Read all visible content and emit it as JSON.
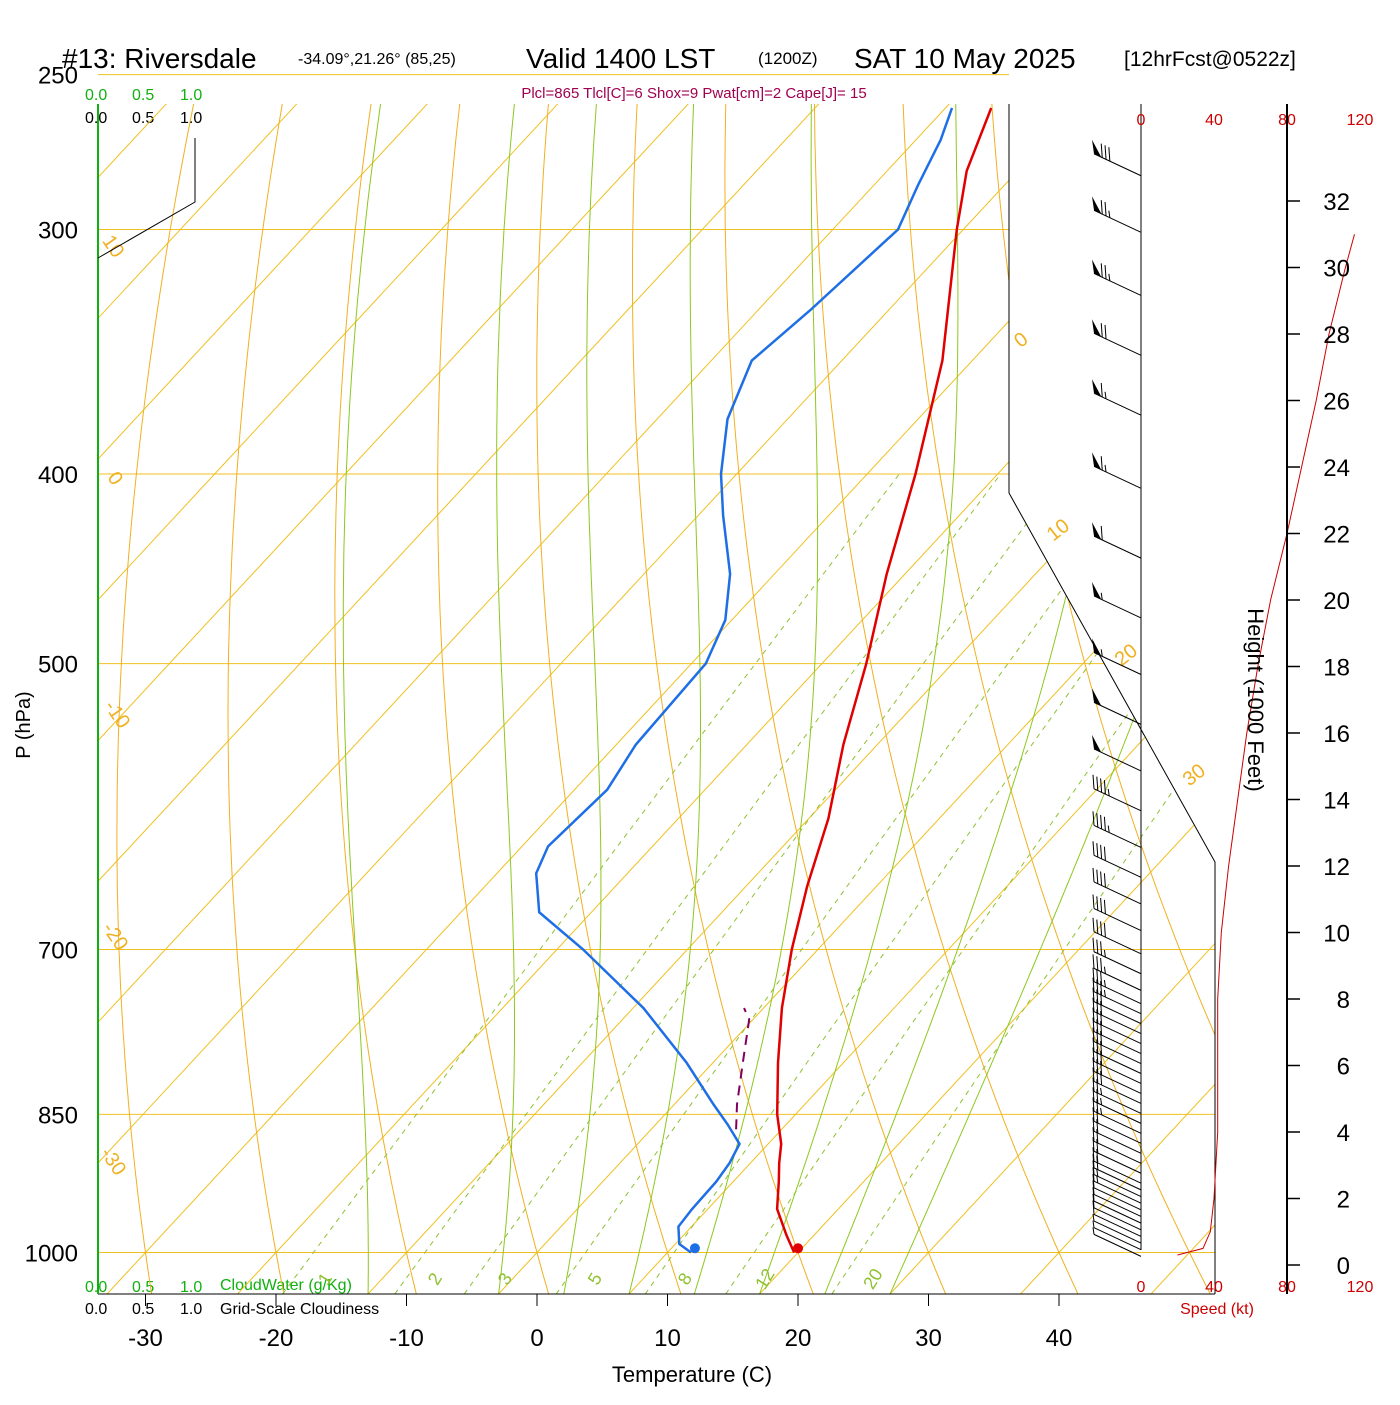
{
  "header": {
    "station": "#13: Riversdale",
    "coords": "-34.09°,21.26° (85,25)",
    "valid": "Valid 1400 LST",
    "utc": "(1200Z)",
    "date": "SAT 10 May 2025",
    "forecast": "[12hrFcst@0522z]",
    "indices": "Plcl=865 Tlcl[C]=6 Shox=9 Pwat[cm]=2 Cape[J]= 15"
  },
  "colors": {
    "isobar": "#f0c020",
    "dry_adiabat": "#f0b020",
    "moist_adiabat": "#8cc81e",
    "mixing_ratio": "#90c030",
    "temperature": "#e00000",
    "dewpoint": "#1e6ee6",
    "parcel": "#800060",
    "cloud_green": "#10b010",
    "wind_speed": "#cc0000"
  },
  "cloud_scale": {
    "top_green": [
      "0.0",
      "0.5",
      "1.0"
    ],
    "top_black": [
      "0.0",
      "0.5",
      "1.0"
    ],
    "bottom_green": [
      "0.0",
      "0.5",
      "1.0"
    ],
    "bottom_green_label": "CloudWater (g/Kg)",
    "bottom_black": [
      "0.0",
      "0.5",
      "1.0"
    ],
    "bottom_black_label": "Grid-Scale Cloudiness"
  },
  "speed_axis": {
    "top_ticks": [
      "0",
      "40",
      "80",
      "120"
    ],
    "bottom_ticks": [
      "0",
      "40",
      "80",
      "120"
    ],
    "label": "Speed (kt)"
  },
  "chart_data": {
    "type": "line",
    "subtype": "skew-T log-P sounding",
    "xlabel": "Temperature (C)",
    "ylabel": "P (hPa)",
    "y2label": "Height (1000 Feet)",
    "x_ticks": [
      -30,
      -20,
      -10,
      0,
      10,
      20,
      30,
      40
    ],
    "y_ticks": [
      250,
      300,
      400,
      500,
      700,
      850,
      1000
    ],
    "y2_ticks": [
      0,
      2,
      4,
      6,
      8,
      10,
      12,
      14,
      16,
      18,
      20,
      22,
      24,
      26,
      28,
      30,
      32
    ],
    "isotherm_labels": [
      "10",
      "0",
      "-10",
      "-20",
      "-30"
    ],
    "dry_adiabat_labels": [
      "0",
      "10",
      "20",
      "30"
    ],
    "mixing_ratio_labels": [
      "1",
      "2",
      "3",
      "5",
      "8",
      "12",
      "20"
    ],
    "series": [
      {
        "name": "Temperature",
        "points": [
          [
            1000,
            19.7
          ],
          [
            980,
            17.9
          ],
          [
            950,
            15.3
          ],
          [
            920,
            13.5
          ],
          [
            900,
            12.2
          ],
          [
            880,
            11.0
          ],
          [
            850,
            8.6
          ],
          [
            800,
            5.0
          ],
          [
            750,
            1.4
          ],
          [
            700,
            -2.0
          ],
          [
            650,
            -5.3
          ],
          [
            600,
            -8.5
          ],
          [
            550,
            -12.6
          ],
          [
            500,
            -16.6
          ],
          [
            450,
            -21.4
          ],
          [
            400,
            -26.3
          ],
          [
            350,
            -32.3
          ],
          [
            300,
            -40.5
          ],
          [
            280,
            -43.9
          ],
          [
            260,
            -46.5
          ]
        ]
      },
      {
        "name": "Dewpoint",
        "points": [
          [
            1000,
            11.8
          ],
          [
            990,
            10.3
          ],
          [
            970,
            9.0
          ],
          [
            950,
            8.8
          ],
          [
            920,
            8.7
          ],
          [
            900,
            8.4
          ],
          [
            880,
            7.8
          ],
          [
            860,
            5.5
          ],
          [
            840,
            3.0
          ],
          [
            800,
            -2.0
          ],
          [
            750,
            -9.2
          ],
          [
            700,
            -18.0
          ],
          [
            670,
            -24.0
          ],
          [
            640,
            -27.0
          ],
          [
            620,
            -28.0
          ],
          [
            580,
            -27.5
          ],
          [
            550,
            -28.5
          ],
          [
            500,
            -28.9
          ],
          [
            475,
            -30.5
          ],
          [
            450,
            -33.4
          ],
          [
            420,
            -38.1
          ],
          [
            400,
            -41.2
          ],
          [
            375,
            -44.6
          ],
          [
            350,
            -46.9
          ],
          [
            330,
            -46.0
          ],
          [
            300,
            -45.0
          ],
          [
            285,
            -46.6
          ],
          [
            270,
            -48.1
          ],
          [
            260,
            -49.5
          ]
        ]
      },
      {
        "name": "Parcel",
        "points": [
          [
            865,
            6.5
          ],
          [
            840,
            4.8
          ],
          [
            800,
            2.3
          ],
          [
            760,
            -0.3
          ],
          [
            750,
            -1.5
          ]
        ]
      }
    ],
    "surface_points": {
      "temperature": 19.7,
      "dewpoint": 11.8,
      "pressure": 1000
    },
    "wind_speed_profile": [
      [
        0.3,
        20
      ],
      [
        0.5,
        34
      ],
      [
        1,
        38
      ],
      [
        2,
        40
      ],
      [
        4,
        42
      ],
      [
        6,
        42
      ],
      [
        8,
        42
      ],
      [
        10,
        44
      ],
      [
        12,
        48
      ],
      [
        14,
        53
      ],
      [
        16,
        58
      ],
      [
        18,
        64
      ],
      [
        20,
        71
      ],
      [
        22,
        80
      ],
      [
        24,
        88
      ],
      [
        26,
        96
      ],
      [
        28,
        103
      ],
      [
        30,
        112
      ],
      [
        31,
        117
      ]
    ],
    "wind_barb_heights_kft": [
      0.5,
      0.7,
      0.9,
      1.1,
      1.3,
      1.5,
      1.7,
      1.9,
      2.1,
      2.3,
      2.5,
      2.7,
      3.0,
      3.3,
      3.6,
      3.9,
      4.2,
      4.5,
      4.8,
      5.1,
      5.4,
      5.7,
      6.0,
      6.3,
      6.6,
      6.9,
      7.2,
      7.5,
      7.8,
      8.1,
      8.5,
      9.0,
      9.6,
      10.3,
      11.1,
      11.9,
      12.8,
      13.9,
      15.1,
      16.5,
      18.0,
      19.7,
      21.5,
      23.6,
      25.8,
      27.6,
      29.4,
      31.3,
      33.0
    ],
    "wind_barb_speeds_kt": [
      5,
      5,
      5,
      8,
      10,
      10,
      10,
      12,
      15,
      15,
      18,
      18,
      20,
      20,
      22,
      22,
      25,
      25,
      25,
      28,
      28,
      30,
      30,
      30,
      30,
      30,
      32,
      32,
      35,
      35,
      35,
      35,
      38,
      38,
      40,
      40,
      45,
      45,
      50,
      50,
      55,
      55,
      60,
      65,
      65,
      70,
      75,
      75,
      80
    ]
  }
}
